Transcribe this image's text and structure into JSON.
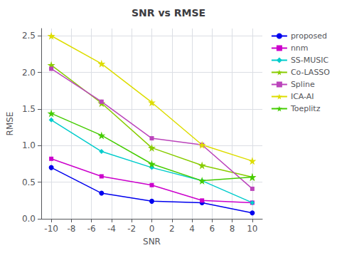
{
  "chart_data": {
    "type": "line",
    "title": "SNR vs RMSE",
    "x_label": "SNR",
    "y_label": "RMSE",
    "x": [
      -10,
      -5,
      0,
      5,
      10
    ],
    "xlim": [
      -11,
      11
    ],
    "xticks": [
      -10,
      -8,
      -6,
      -4,
      -2,
      0,
      2,
      4,
      6,
      8,
      10
    ],
    "ylim": [
      0,
      2.6
    ],
    "yticks": [
      {
        "value": 0,
        "label": "0.0"
      },
      0.5,
      {
        "value": 1,
        "label": "1.0"
      },
      1.5,
      {
        "value": 2,
        "label": "2.0"
      },
      2.5
    ],
    "grid": true,
    "legend": "upper right",
    "series": [
      {
        "name": "proposed",
        "color": "#0000ee",
        "marker": "circle",
        "values": [
          0.7,
          0.35,
          0.24,
          0.22,
          0.08
        ]
      },
      {
        "name": "nnm",
        "color": "#cc00cc",
        "marker": "square",
        "values": [
          0.82,
          0.58,
          0.46,
          0.25,
          0.22
        ]
      },
      {
        "name": "SS-MUSIC",
        "color": "#00cccc",
        "marker": "diamond",
        "values": [
          1.35,
          0.92,
          0.7,
          0.52,
          0.22
        ]
      },
      {
        "name": "Co-LASSO",
        "color": "#88cc00",
        "marker": "star",
        "values": [
          2.1,
          1.58,
          0.97,
          0.73,
          0.57
        ]
      },
      {
        "name": "Spline",
        "color": "#bb44bb",
        "marker": "square",
        "values": [
          2.05,
          1.6,
          1.1,
          1.01,
          0.41
        ]
      },
      {
        "name": "ICA-AI",
        "color": "#dddd00",
        "marker": "star",
        "values": [
          2.5,
          2.12,
          1.59,
          1.01,
          0.79
        ]
      },
      {
        "name": "Toeplitz",
        "color": "#44cc00",
        "marker": "star",
        "values": [
          1.44,
          1.14,
          0.75,
          0.52,
          0.57
        ]
      }
    ]
  }
}
